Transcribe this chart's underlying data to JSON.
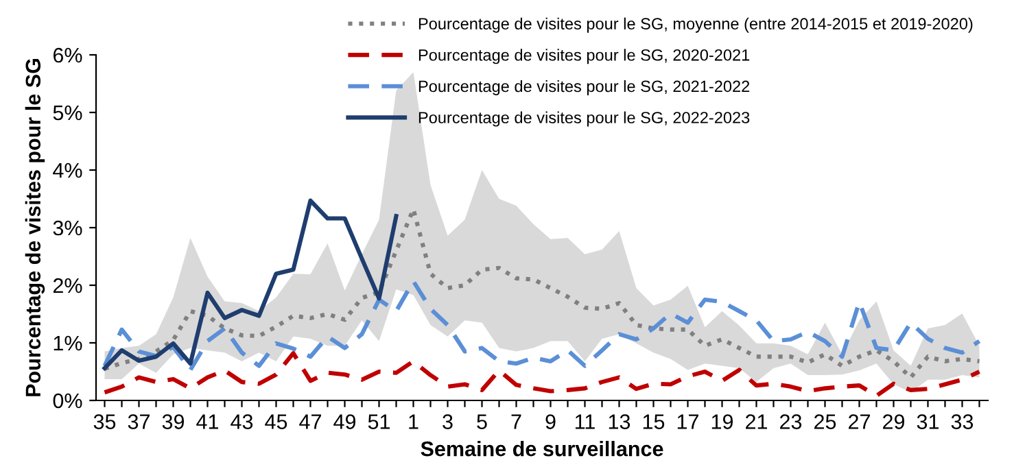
{
  "chart_data": {
    "type": "line",
    "xlabel": "Semaine de surveillance",
    "ylabel": "Pourcentage de visites pour le SG",
    "categories": [
      "35",
      null,
      "37",
      null,
      "39",
      null,
      "41",
      null,
      "43",
      null,
      "45",
      null,
      "47",
      null,
      "49",
      null,
      "51",
      null,
      "1",
      null,
      "3",
      null,
      "5",
      null,
      "7",
      null,
      "9",
      null,
      "11",
      null,
      "13",
      null,
      "15",
      null,
      "17",
      null,
      "19",
      null,
      "21",
      null,
      "23",
      null,
      "25",
      null,
      "27",
      null,
      "29",
      null,
      "31",
      null,
      "33",
      null
    ],
    "ylim": [
      0,
      6
    ],
    "yticks": [
      {
        "value": 0,
        "label": "0%"
      },
      {
        "value": 1,
        "label": "1%"
      },
      {
        "value": 2,
        "label": "2%"
      },
      {
        "value": 3,
        "label": "3%"
      },
      {
        "value": 4,
        "label": "4%"
      },
      {
        "value": 5,
        "label": "5%"
      },
      {
        "value": 6,
        "label": "6%"
      }
    ],
    "grid": false,
    "legend": "top right",
    "marker": "none",
    "series": [
      {
        "name": "Pourcentage de visites pour le SG, moyenne (entre 2014-2015 et 2019-2020)",
        "color": "#808080",
        "line_style": "dotted",
        "values": [
          0.55,
          0.65,
          0.72,
          0.85,
          1.05,
          1.55,
          1.47,
          1.25,
          1.13,
          1.12,
          1.28,
          1.47,
          1.43,
          1.5,
          1.4,
          1.78,
          1.88,
          2.6,
          3.32,
          2.2,
          1.95,
          2.0,
          2.27,
          2.3,
          2.12,
          2.1,
          1.95,
          1.8,
          1.61,
          1.59,
          1.69,
          1.31,
          1.25,
          1.23,
          1.23,
          0.95,
          1.06,
          0.91,
          0.76,
          0.76,
          0.76,
          0.66,
          0.8,
          0.6,
          0.76,
          0.87,
          0.68,
          0.4,
          0.76,
          0.68,
          0.72,
          0.68
        ],
        "lower": [
          0.37,
          0.37,
          0.64,
          0.48,
          0.8,
          0.91,
          0.87,
          0.83,
          0.68,
          0.83,
          0.68,
          1.11,
          1.07,
          0.95,
          0.95,
          1.39,
          1.03,
          1.93,
          1.83,
          1.31,
          1.11,
          1.39,
          1.35,
          0.91,
          0.85,
          0.91,
          1.03,
          1.03,
          0.68,
          1.07,
          1.15,
          0.99,
          0.83,
          0.72,
          0.53,
          0.64,
          0.6,
          0.56,
          0.32,
          0.56,
          0.64,
          0.44,
          0.44,
          0.45,
          0.52,
          0.64,
          0.28,
          0.14,
          0.36,
          0.36,
          0.44,
          0.4
        ],
        "upper": [
          0.85,
          0.91,
          0.95,
          1.15,
          1.79,
          2.82,
          2.15,
          1.72,
          1.69,
          1.55,
          1.79,
          2.2,
          2.19,
          2.73,
          1.91,
          2.54,
          3.14,
          5.38,
          5.7,
          3.74,
          2.86,
          3.14,
          4.0,
          3.5,
          3.38,
          3.06,
          2.8,
          2.82,
          2.54,
          2.62,
          2.94,
          1.95,
          1.65,
          1.75,
          1.99,
          1.27,
          1.55,
          1.3,
          0.99,
          0.99,
          0.95,
          0.8,
          1.35,
          0.8,
          1.39,
          1.72,
          0.87,
          0.6,
          1.25,
          1.31,
          1.51,
          0.95
        ]
      },
      {
        "name": "Pourcentage de visites pour le SG, 2020-2021",
        "color": "#c00000",
        "line_style": "dashed",
        "values": [
          0.14,
          0.24,
          0.4,
          0.32,
          0.37,
          0.21,
          0.4,
          0.52,
          0.32,
          0.29,
          0.45,
          0.82,
          0.34,
          0.48,
          0.45,
          0.36,
          0.5,
          0.48,
          0.68,
          0.44,
          0.24,
          0.28,
          0.18,
          0.52,
          0.27,
          0.21,
          0.16,
          0.18,
          0.21,
          0.32,
          0.4,
          0.2,
          0.29,
          0.28,
          0.42,
          0.5,
          0.34,
          0.53,
          0.26,
          0.29,
          0.24,
          0.16,
          0.21,
          0.24,
          0.26,
          0.08,
          0.29,
          0.18,
          0.2,
          0.28,
          0.36,
          0.5
        ]
      },
      {
        "name": "Pourcentage de visites pour le SG, 2021-2022",
        "color": "#5b8fd6",
        "line_style": "dashed",
        "values": [
          0.6,
          1.23,
          0.85,
          0.77,
          0.93,
          0.53,
          1.03,
          1.25,
          0.83,
          0.6,
          0.99,
          0.9,
          0.76,
          1.11,
          0.91,
          1.15,
          1.75,
          1.55,
          2.07,
          1.59,
          1.31,
          0.85,
          0.91,
          0.68,
          0.64,
          0.74,
          0.68,
          0.87,
          0.6,
          0.87,
          1.15,
          1.06,
          1.25,
          1.51,
          1.35,
          1.75,
          1.71,
          1.55,
          1.39,
          1.03,
          1.06,
          1.19,
          1.03,
          0.76,
          1.71,
          0.91,
          0.87,
          1.35,
          1.07,
          0.91,
          0.83,
          1.03
        ]
      },
      {
        "name": "Pourcentage de visites pour le SG, 2022-2023",
        "color": "#1f3d6e",
        "line_style": "solid",
        "values": [
          0.56,
          0.87,
          0.69,
          0.76,
          0.99,
          0.64,
          1.87,
          1.43,
          1.57,
          1.47,
          2.2,
          2.27,
          3.47,
          3.16,
          3.16,
          2.46,
          1.77,
          3.2,
          null,
          null,
          null,
          null,
          null,
          null,
          null,
          null,
          null,
          null,
          null,
          null,
          null,
          null,
          null,
          null,
          null,
          null,
          null,
          null,
          null,
          null,
          null,
          null,
          null,
          null,
          null,
          null,
          null,
          null,
          null,
          null,
          null,
          null
        ]
      }
    ]
  }
}
